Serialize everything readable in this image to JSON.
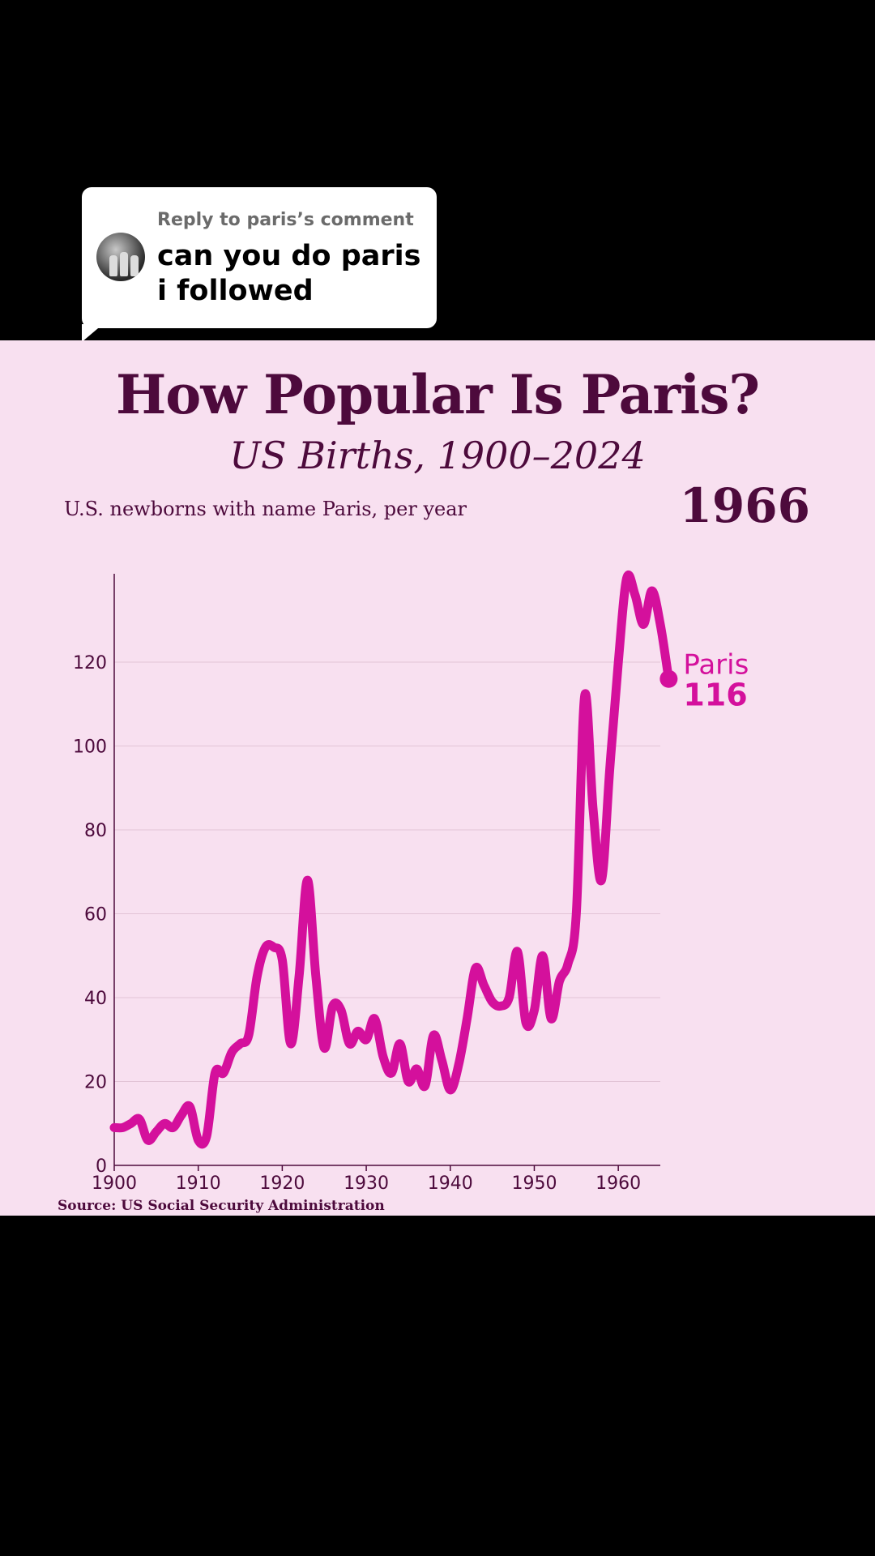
{
  "reply": {
    "label": "Reply to paris’s comment",
    "text": "can you do paris i followed"
  },
  "colors": {
    "accent": "#d4109c",
    "ink": "#4d0a3c",
    "panel_bg": "#f8e0f0",
    "grid": "#e2c4d6"
  },
  "chart_data": {
    "type": "line",
    "title": "How Popular Is Paris?",
    "subtitle": "US Births, 1900–2024",
    "ylabel": "U.S. newborns with name Paris, per year",
    "current_year": "1966",
    "source": "Source: US Social Security Administration",
    "xlim": [
      1900,
      1966
    ],
    "ylim": [
      0,
      140
    ],
    "x_ticks": [
      1900,
      1910,
      1920,
      1930,
      1940,
      1950,
      1960
    ],
    "y_ticks": [
      0,
      20,
      40,
      60,
      80,
      100,
      120
    ],
    "grid": true,
    "series": [
      {
        "name": "Paris",
        "end_value": "116",
        "x": [
          1900,
          1901,
          1902,
          1903,
          1904,
          1905,
          1906,
          1907,
          1908,
          1909,
          1910,
          1911,
          1912,
          1913,
          1914,
          1915,
          1916,
          1917,
          1918,
          1919,
          1920,
          1921,
          1922,
          1923,
          1924,
          1925,
          1926,
          1927,
          1928,
          1929,
          1930,
          1931,
          1932,
          1933,
          1934,
          1935,
          1936,
          1937,
          1938,
          1939,
          1940,
          1941,
          1942,
          1943,
          1944,
          1945,
          1946,
          1947,
          1948,
          1949,
          1950,
          1951,
          1952,
          1953,
          1954,
          1955,
          1956,
          1957,
          1958,
          1959,
          1960,
          1961,
          1962,
          1963,
          1964,
          1965,
          1966
        ],
        "y": [
          9,
          9,
          10,
          11,
          6,
          8,
          10,
          9,
          12,
          14,
          6,
          7,
          22,
          22,
          27,
          29,
          31,
          45,
          52,
          52,
          49,
          29,
          45,
          68,
          45,
          28,
          38,
          37,
          29,
          32,
          30,
          35,
          26,
          22,
          29,
          20,
          23,
          19,
          31,
          25,
          18,
          24,
          35,
          47,
          43,
          39,
          38,
          40,
          51,
          34,
          37,
          50,
          35,
          44,
          48,
          60,
          112,
          85,
          68,
          95,
          120,
          140,
          136,
          129,
          137,
          129,
          116
        ]
      }
    ]
  }
}
